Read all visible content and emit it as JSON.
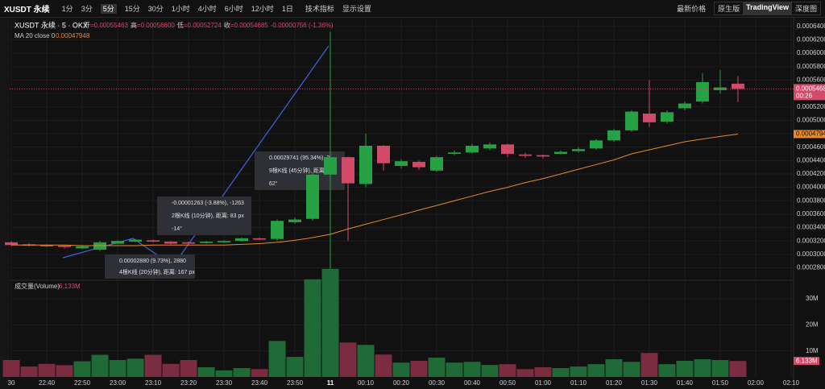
{
  "toolbar": {
    "symbol": "XUSDT 永续",
    "intervals": [
      "1分",
      "3分",
      "5分",
      "15分",
      "30分",
      "1小时",
      "4小时",
      "6小时",
      "12小时",
      "1日"
    ],
    "indicators": "技术指标",
    "display": "显示设置",
    "price_mode": "最新价格",
    "views": [
      "原生版",
      "TradingView",
      "深度图"
    ]
  },
  "chart_data": [
    {
      "type": "candlestick",
      "title": "XUSDT 永续 · 5 · OKX",
      "ohlc_legend": [
        {
          "label": "开",
          "value": "=0.00055463"
        },
        {
          "label": "高",
          "value": "=0.00056600"
        },
        {
          "label": "低",
          "value": "=0.00052724"
        },
        {
          "label": "收",
          "value": "=0.00054685"
        }
      ],
      "change": "-0.00000756 (-1.36%)",
      "up_color": "#26a245",
      "down_color": "#d14a6a",
      "grid": true,
      "open": [
        0.000318,
        0.000315,
        0.000314,
        0.000313,
        0.000309,
        0.000307,
        0.000316,
        0.000319,
        0.000321,
        0.000319,
        0.000318,
        0.000317,
        0.000318,
        0.00032,
        0.000324,
        0.000323,
        0.000348,
        0.000353,
        0.000419,
        0.000445,
        0.000405,
        0.000462,
        0.000432,
        0.000438,
        0.000425,
        0.00045,
        0.000452,
        0.000458,
        0.000464,
        0.000449,
        0.000448,
        0.00045,
        0.000454,
        0.000458,
        0.00047,
        0.000485,
        0.00051,
        0.000498,
        0.000518,
        0.000528,
        0.000545,
        0.00055463
      ],
      "high": [
        0.00032,
        0.000317,
        0.000315,
        0.000314,
        0.000314,
        0.00032,
        0.000321,
        0.000323,
        0.000322,
        0.00032,
        0.000319,
        0.00032,
        0.000321,
        0.000325,
        0.000325,
        0.000352,
        0.000355,
        0.000422,
        0.000632,
        0.000446,
        0.00048,
        0.000463,
        0.000442,
        0.00044,
        0.000447,
        0.000455,
        0.000465,
        0.000467,
        0.000465,
        0.000452,
        0.000449,
        0.000455,
        0.00046,
        0.000472,
        0.000487,
        0.000515,
        0.00056,
        0.000515,
        0.000528,
        0.00057,
        0.000575,
        0.000566
      ],
      "low": [
        0.000312,
        0.000312,
        0.000311,
        0.000309,
        0.000308,
        0.000305,
        0.000315,
        0.000318,
        0.000318,
        0.000315,
        0.000315,
        0.000316,
        0.000317,
        0.000319,
        0.000321,
        0.00032,
        0.000346,
        0.00035,
        0.000272,
        0.00032,
        0.0004,
        0.000425,
        0.000428,
        0.000426,
        0.000423,
        0.000448,
        0.00045,
        0.000455,
        0.000445,
        0.000444,
        0.000443,
        0.000449,
        0.000452,
        0.000456,
        0.000468,
        0.000483,
        0.00049,
        0.000495,
        0.000515,
        0.000525,
        0.00054,
        0.00052724
      ],
      "close": [
        0.000314,
        0.000313,
        0.000312,
        0.000311,
        0.000312,
        0.000318,
        0.00032,
        0.000322,
        0.000319,
        0.000316,
        0.000316,
        0.000319,
        0.00032,
        0.000324,
        0.000322,
        0.00035,
        0.000352,
        0.000419,
        0.000445,
        0.000406,
        0.000462,
        0.000436,
        0.000439,
        0.00043,
        0.000445,
        0.000452,
        0.000462,
        0.000464,
        0.00045,
        0.000447,
        0.000446,
        0.000453,
        0.000457,
        0.00047,
        0.000485,
        0.000513,
        0.000497,
        0.000512,
        0.000525,
        0.000557,
        0.000549,
        0.00054685
      ],
      "ma": {
        "name": "MA 20 close 0",
        "value_label": "0.00047948",
        "color": "#e8892a",
        "values": [
          0.000314,
          0.000314,
          0.000314,
          0.000314,
          0.000313,
          0.000313,
          0.000313,
          0.000313,
          0.000314,
          0.000314,
          0.000314,
          0.000314,
          0.000314,
          0.000315,
          0.000316,
          0.000318,
          0.000321,
          0.000325,
          0.00033,
          0.000338,
          0.000345,
          0.000352,
          0.000359,
          0.000366,
          0.000373,
          0.00038,
          0.000387,
          0.000394,
          0.0004,
          0.000407,
          0.000413,
          0.00042,
          0.000427,
          0.000434,
          0.000441,
          0.00045,
          0.000456,
          0.000462,
          0.000468,
          0.000472,
          0.000476,
          0.00047948
        ]
      },
      "last_price": {
        "value": 0.00054685,
        "label": "0.00054685",
        "countdown": "00:26"
      },
      "xlim": [
        -0.64,
        44.14
      ],
      "ylim": [
        0.000265,
        0.000653
      ],
      "xticks": [
        {
          "value": 0,
          "label": "30"
        },
        {
          "value": 2,
          "label": "22:40"
        },
        {
          "value": 4,
          "label": "22:50"
        },
        {
          "value": 6,
          "label": "23:00"
        },
        {
          "value": 8,
          "label": "23:10"
        },
        {
          "value": 10,
          "label": "23:20"
        },
        {
          "value": 12,
          "label": "23:30"
        },
        {
          "value": 14,
          "label": "23:40"
        },
        {
          "value": 16,
          "label": "23:50"
        },
        {
          "value": 18,
          "label": "11"
        },
        {
          "value": 20,
          "label": "00:10"
        },
        {
          "value": 22,
          "label": "00:20"
        },
        {
          "value": 24,
          "label": "00:30"
        },
        {
          "value": 26,
          "label": "00:40"
        },
        {
          "value": 28,
          "label": "00:50"
        },
        {
          "value": 30,
          "label": "01:00"
        },
        {
          "value": 32,
          "label": "01:10"
        },
        {
          "value": 34,
          "label": "01:20"
        },
        {
          "value": 36,
          "label": "01:30"
        },
        {
          "value": 38,
          "label": "01:40"
        },
        {
          "value": 40,
          "label": "01:50"
        },
        {
          "value": 42,
          "label": "02:00"
        },
        {
          "value": 44,
          "label": "02:10"
        }
      ],
      "yticks": [
        {
          "value": 0.00028,
          "label": "0.00028000"
        },
        {
          "value": 0.0003,
          "label": "0.00030000"
        },
        {
          "value": 0.00032,
          "label": "0.00032000"
        },
        {
          "value": 0.00034,
          "label": "0.00034000"
        },
        {
          "value": 0.00036,
          "label": "0.00036000"
        },
        {
          "value": 0.00038,
          "label": "0.00038000"
        },
        {
          "value": 0.0004,
          "label": "0.00040000"
        },
        {
          "value": 0.00042,
          "label": "0.00042000"
        },
        {
          "value": 0.00044,
          "label": "0.00044000"
        },
        {
          "value": 0.00046,
          "label": "0.00046000"
        },
        {
          "value": 0.00048,
          "label": "0.00048000"
        },
        {
          "value": 0.0005,
          "label": "0.00050000"
        },
        {
          "value": 0.00052,
          "label": "0.00052000"
        },
        {
          "value": 0.00054,
          "label": "0.00054000"
        },
        {
          "value": 0.00056,
          "label": "0.00056000"
        },
        {
          "value": 0.00058,
          "label": "0.00058000"
        },
        {
          "value": 0.0006,
          "label": "0.00060000"
        },
        {
          "value": 0.00062,
          "label": "0.00062000"
        },
        {
          "value": 0.00064,
          "label": "0.00064000"
        }
      ],
      "annotations": [
        [
          "0.00002880 (9.73%), 2880",
          "4根K线 (20分钟), 距离: 167 px"
        ],
        [
          "-0.00001263 (-3.88%), -1263",
          "2根K线 (10分钟), 距离: 83 px",
          "-14°"
        ],
        [
          "0.00029741 (95.34%), 2",
          "9根K线 (45分钟), 距离:",
          "62°"
        ]
      ]
    },
    {
      "type": "volume",
      "title": "成交量(Volume)",
      "value_label": "6.133M",
      "up_color": "#1f6a36",
      "down_color": "#7c2c40",
      "values": [
        6.5,
        4,
        5,
        4.5,
        6,
        8.5,
        6.5,
        7,
        8.5,
        5,
        6.5,
        3.7,
        2.5,
        3.4,
        3,
        13.8,
        7.7,
        37.5,
        41.5,
        13.2,
        12.3,
        8.6,
        5.5,
        6.2,
        7.4,
        5.5,
        5.8,
        4.6,
        4.9,
        3,
        3.7,
        3.4,
        4,
        4.9,
        6.8,
        5.8,
        9.2,
        4.9,
        6.2,
        6.8,
        6.5,
        6.133
      ],
      "ylim": [
        0,
        36.5
      ],
      "yticks": [
        {
          "value": 10,
          "label": "10M"
        },
        {
          "value": 20,
          "label": "20M"
        },
        {
          "value": 30,
          "label": "30M"
        }
      ]
    }
  ]
}
